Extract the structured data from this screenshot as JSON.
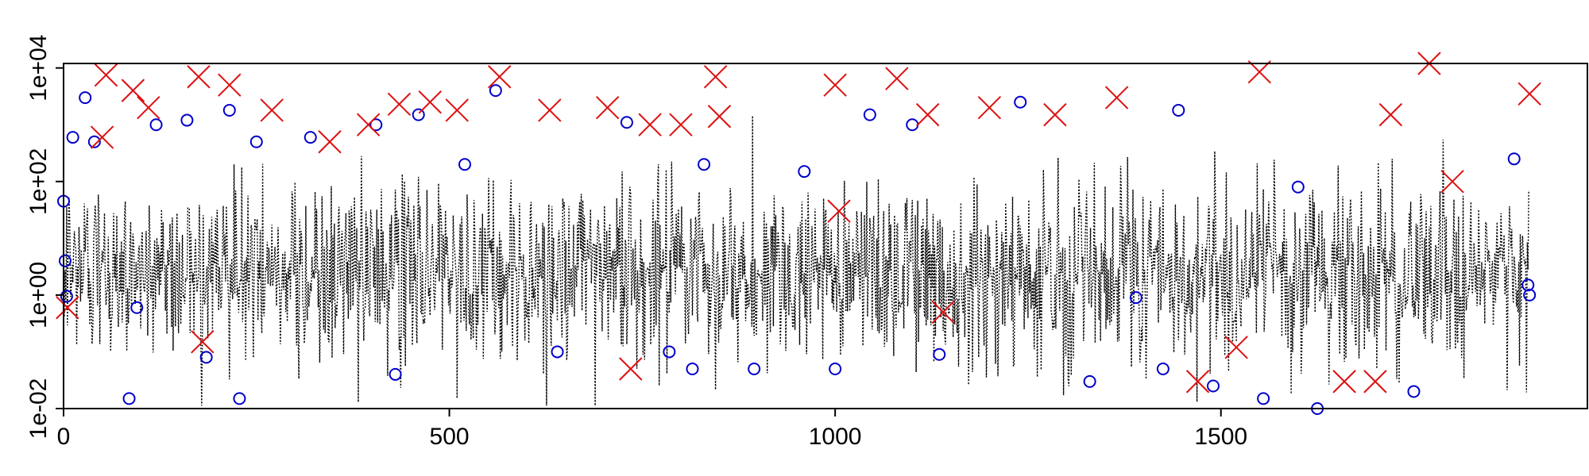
{
  "chart_data": {
    "type": "scatter",
    "title": "",
    "xlabel": "",
    "ylabel": "",
    "x_scale": "linear",
    "y_scale": "log",
    "xlim": [
      0,
      1975
    ],
    "ylim": [
      0.01,
      12000
    ],
    "x_ticks": [
      {
        "value": 0,
        "label": "0"
      },
      {
        "value": 500,
        "label": "500"
      },
      {
        "value": 1000,
        "label": "1000"
      },
      {
        "value": 1500,
        "label": "1500"
      }
    ],
    "y_ticks": [
      {
        "value": 0.01,
        "label": "1e-02"
      },
      {
        "value": 1,
        "label": "1e+00"
      },
      {
        "value": 100,
        "label": "1e+02"
      },
      {
        "value": 10000,
        "label": "1e+04"
      }
    ],
    "grid": false,
    "legend": "none",
    "n_points": 1900,
    "series": [
      {
        "kind": "dotted-line",
        "color": "#000000",
        "description_level": "dense noisy series, typical 0.1 to 50"
      },
      {
        "kind": "open-circle",
        "color": "#0000cc"
      },
      {
        "kind": "x-cross",
        "color": "#dd1111"
      }
    ],
    "highlight_circles": [
      {
        "x": 0,
        "y": 45
      },
      {
        "x": 2,
        "y": 4
      },
      {
        "x": 4,
        "y": 0.95
      },
      {
        "x": 12,
        "y": 600
      },
      {
        "x": 28,
        "y": 3000
      },
      {
        "x": 40,
        "y": 500
      },
      {
        "x": 85,
        "y": 0.015
      },
      {
        "x": 95,
        "y": 0.6
      },
      {
        "x": 120,
        "y": 1000
      },
      {
        "x": 160,
        "y": 1200
      },
      {
        "x": 185,
        "y": 0.08
      },
      {
        "x": 215,
        "y": 1800
      },
      {
        "x": 228,
        "y": 0.015
      },
      {
        "x": 250,
        "y": 500
      },
      {
        "x": 320,
        "y": 600
      },
      {
        "x": 405,
        "y": 1000
      },
      {
        "x": 430,
        "y": 0.04
      },
      {
        "x": 460,
        "y": 1500
      },
      {
        "x": 520,
        "y": 200
      },
      {
        "x": 560,
        "y": 4000
      },
      {
        "x": 640,
        "y": 0.1
      },
      {
        "x": 730,
        "y": 1100
      },
      {
        "x": 785,
        "y": 0.1
      },
      {
        "x": 815,
        "y": 0.05
      },
      {
        "x": 830,
        "y": 200
      },
      {
        "x": 895,
        "y": 0.05
      },
      {
        "x": 960,
        "y": 150
      },
      {
        "x": 1000,
        "y": 0.05
      },
      {
        "x": 1045,
        "y": 1500
      },
      {
        "x": 1100,
        "y": 1000
      },
      {
        "x": 1135,
        "y": 0.09
      },
      {
        "x": 1240,
        "y": 2500
      },
      {
        "x": 1330,
        "y": 0.03
      },
      {
        "x": 1390,
        "y": 0.9
      },
      {
        "x": 1425,
        "y": 0.05
      },
      {
        "x": 1445,
        "y": 1800
      },
      {
        "x": 1490,
        "y": 0.025
      },
      {
        "x": 1555,
        "y": 0.015
      },
      {
        "x": 1600,
        "y": 80
      },
      {
        "x": 1625,
        "y": 0.01
      },
      {
        "x": 1750,
        "y": 0.02
      },
      {
        "x": 1880,
        "y": 250
      },
      {
        "x": 1898,
        "y": 1.5
      },
      {
        "x": 1900,
        "y": 1
      }
    ],
    "highlight_crosses": [
      {
        "x": 5,
        "y": 0.6
      },
      {
        "x": 50,
        "y": 600
      },
      {
        "x": 55,
        "y": 7500
      },
      {
        "x": 90,
        "y": 4000
      },
      {
        "x": 110,
        "y": 2000
      },
      {
        "x": 175,
        "y": 7000
      },
      {
        "x": 180,
        "y": 0.15
      },
      {
        "x": 215,
        "y": 5000
      },
      {
        "x": 270,
        "y": 1800
      },
      {
        "x": 345,
        "y": 500
      },
      {
        "x": 395,
        "y": 1000
      },
      {
        "x": 435,
        "y": 2300
      },
      {
        "x": 475,
        "y": 2500
      },
      {
        "x": 510,
        "y": 1800
      },
      {
        "x": 565,
        "y": 7000
      },
      {
        "x": 630,
        "y": 1800
      },
      {
        "x": 705,
        "y": 2000
      },
      {
        "x": 735,
        "y": 0.05
      },
      {
        "x": 760,
        "y": 1000
      },
      {
        "x": 800,
        "y": 1000
      },
      {
        "x": 845,
        "y": 7000
      },
      {
        "x": 850,
        "y": 1400
      },
      {
        "x": 1000,
        "y": 5000
      },
      {
        "x": 1005,
        "y": 30
      },
      {
        "x": 1080,
        "y": 6500
      },
      {
        "x": 1120,
        "y": 1500
      },
      {
        "x": 1140,
        "y": 0.5
      },
      {
        "x": 1200,
        "y": 2000
      },
      {
        "x": 1285,
        "y": 1500
      },
      {
        "x": 1365,
        "y": 3000
      },
      {
        "x": 1470,
        "y": 0.03
      },
      {
        "x": 1520,
        "y": 0.12
      },
      {
        "x": 1550,
        "y": 8500
      },
      {
        "x": 1660,
        "y": 0.03
      },
      {
        "x": 1700,
        "y": 0.03
      },
      {
        "x": 1720,
        "y": 1500
      },
      {
        "x": 1770,
        "y": 12000
      },
      {
        "x": 1800,
        "y": 100
      },
      {
        "x": 1900,
        "y": 3500
      }
    ]
  }
}
